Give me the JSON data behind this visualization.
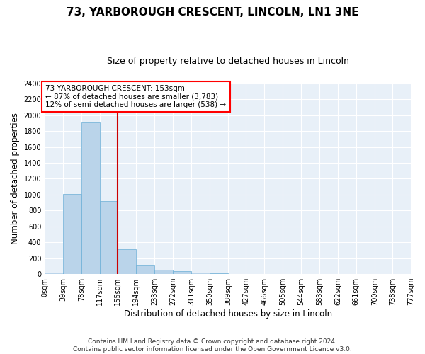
{
  "title": "73, YARBOROUGH CRESCENT, LINCOLN, LN1 3NE",
  "subtitle": "Size of property relative to detached houses in Lincoln",
  "xlabel": "Distribution of detached houses by size in Lincoln",
  "ylabel": "Number of detached properties",
  "footer_line1": "Contains HM Land Registry data © Crown copyright and database right 2024.",
  "footer_line2": "Contains public sector information licensed under the Open Government Licence v3.0.",
  "annotation_line1": "73 YARBOROUGH CRESCENT: 153sqm",
  "annotation_line2": "← 87% of detached houses are smaller (3,783)",
  "annotation_line3": "12% of semi-detached houses are larger (538) →",
  "bin_edges": [
    0,
    39,
    78,
    117,
    155,
    194,
    233,
    272,
    311,
    350,
    389,
    427,
    466,
    505,
    544,
    583,
    622,
    661,
    700,
    738,
    777
  ],
  "bin_labels": [
    "0sqm",
    "39sqm",
    "78sqm",
    "117sqm",
    "155sqm",
    "194sqm",
    "233sqm",
    "272sqm",
    "311sqm",
    "350sqm",
    "389sqm",
    "427sqm",
    "466sqm",
    "505sqm",
    "544sqm",
    "583sqm",
    "622sqm",
    "661sqm",
    "700sqm",
    "738sqm",
    "777sqm"
  ],
  "bar_values": [
    20,
    1010,
    1910,
    920,
    315,
    110,
    58,
    35,
    22,
    8,
    3,
    1,
    0,
    0,
    0,
    0,
    0,
    0,
    0,
    0
  ],
  "bar_color": "#bad4ea",
  "bar_edge_color": "#6aaed6",
  "vline_color": "#cc0000",
  "vline_x": 155,
  "ylim": [
    0,
    2400
  ],
  "yticks": [
    0,
    200,
    400,
    600,
    800,
    1000,
    1200,
    1400,
    1600,
    1800,
    2000,
    2200,
    2400
  ],
  "figure_bg": "#ffffff",
  "plot_bg": "#e8f0f8",
  "grid_color": "#ffffff",
  "title_fontsize": 11,
  "subtitle_fontsize": 9,
  "axis_label_fontsize": 8.5,
  "tick_fontsize": 7,
  "annotation_fontsize": 7.5,
  "footer_fontsize": 6.5
}
